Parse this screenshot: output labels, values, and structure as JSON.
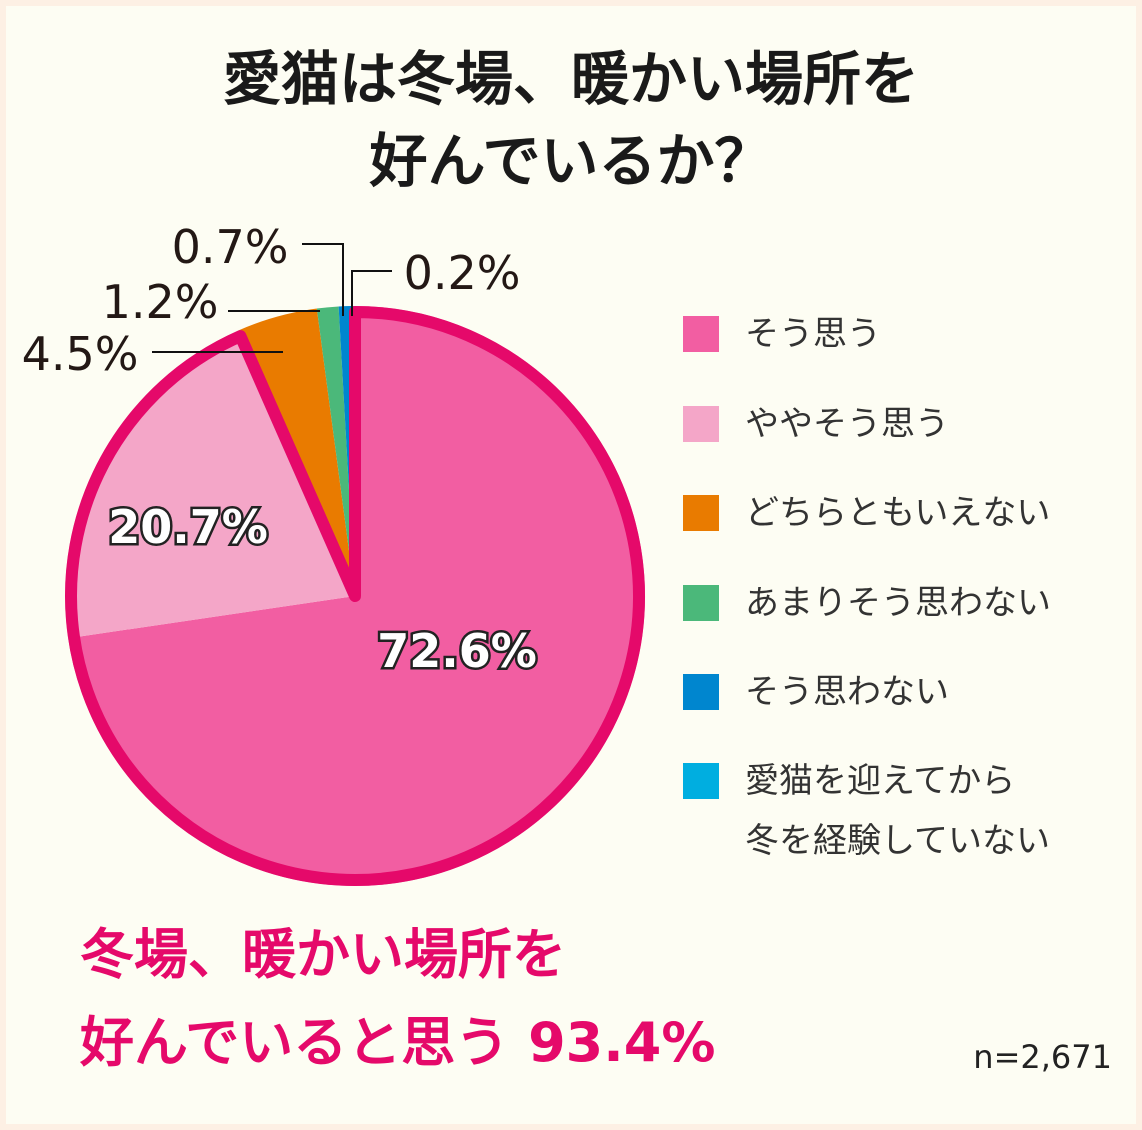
{
  "title_lines": [
    "愛猫は冬場、暖かい場所を",
    "好んでいるか？"
  ],
  "chart_data": {
    "type": "pie",
    "title": "愛猫は冬場、暖かい場所を好んでいるか？",
    "categories": [
      "そう思う",
      "ややそう思う",
      "どちらともいえない",
      "あまりそう思わない",
      "そう思わない",
      "愛猫を迎えてから冬を経験していない"
    ],
    "values": [
      72.6,
      20.7,
      4.5,
      1.2,
      0.7,
      0.2
    ],
    "labels": [
      "72.6%",
      "20.7%",
      "4.5%",
      "1.2%",
      "0.7%",
      "0.2%"
    ],
    "colors": [
      "#f25ea2",
      "#f4a6c8",
      "#e97b00",
      "#4bb87a",
      "#0086cf",
      "#00aee0"
    ],
    "highlight_color": "#e5096a",
    "legend": "right",
    "start": "top-clockwise"
  },
  "legend_lines": [
    [
      "そう思う"
    ],
    [
      "ややそう思う"
    ],
    [
      "どちらともいえない"
    ],
    [
      "あまりそう思わない"
    ],
    [
      "そう思わない"
    ],
    [
      "愛猫を迎えてから",
      "冬を経験していない"
    ]
  ],
  "summary_lines": [
    "冬場、暖かい場所を",
    "好んでいると思う 93.4%"
  ],
  "sample": "n=2,671"
}
